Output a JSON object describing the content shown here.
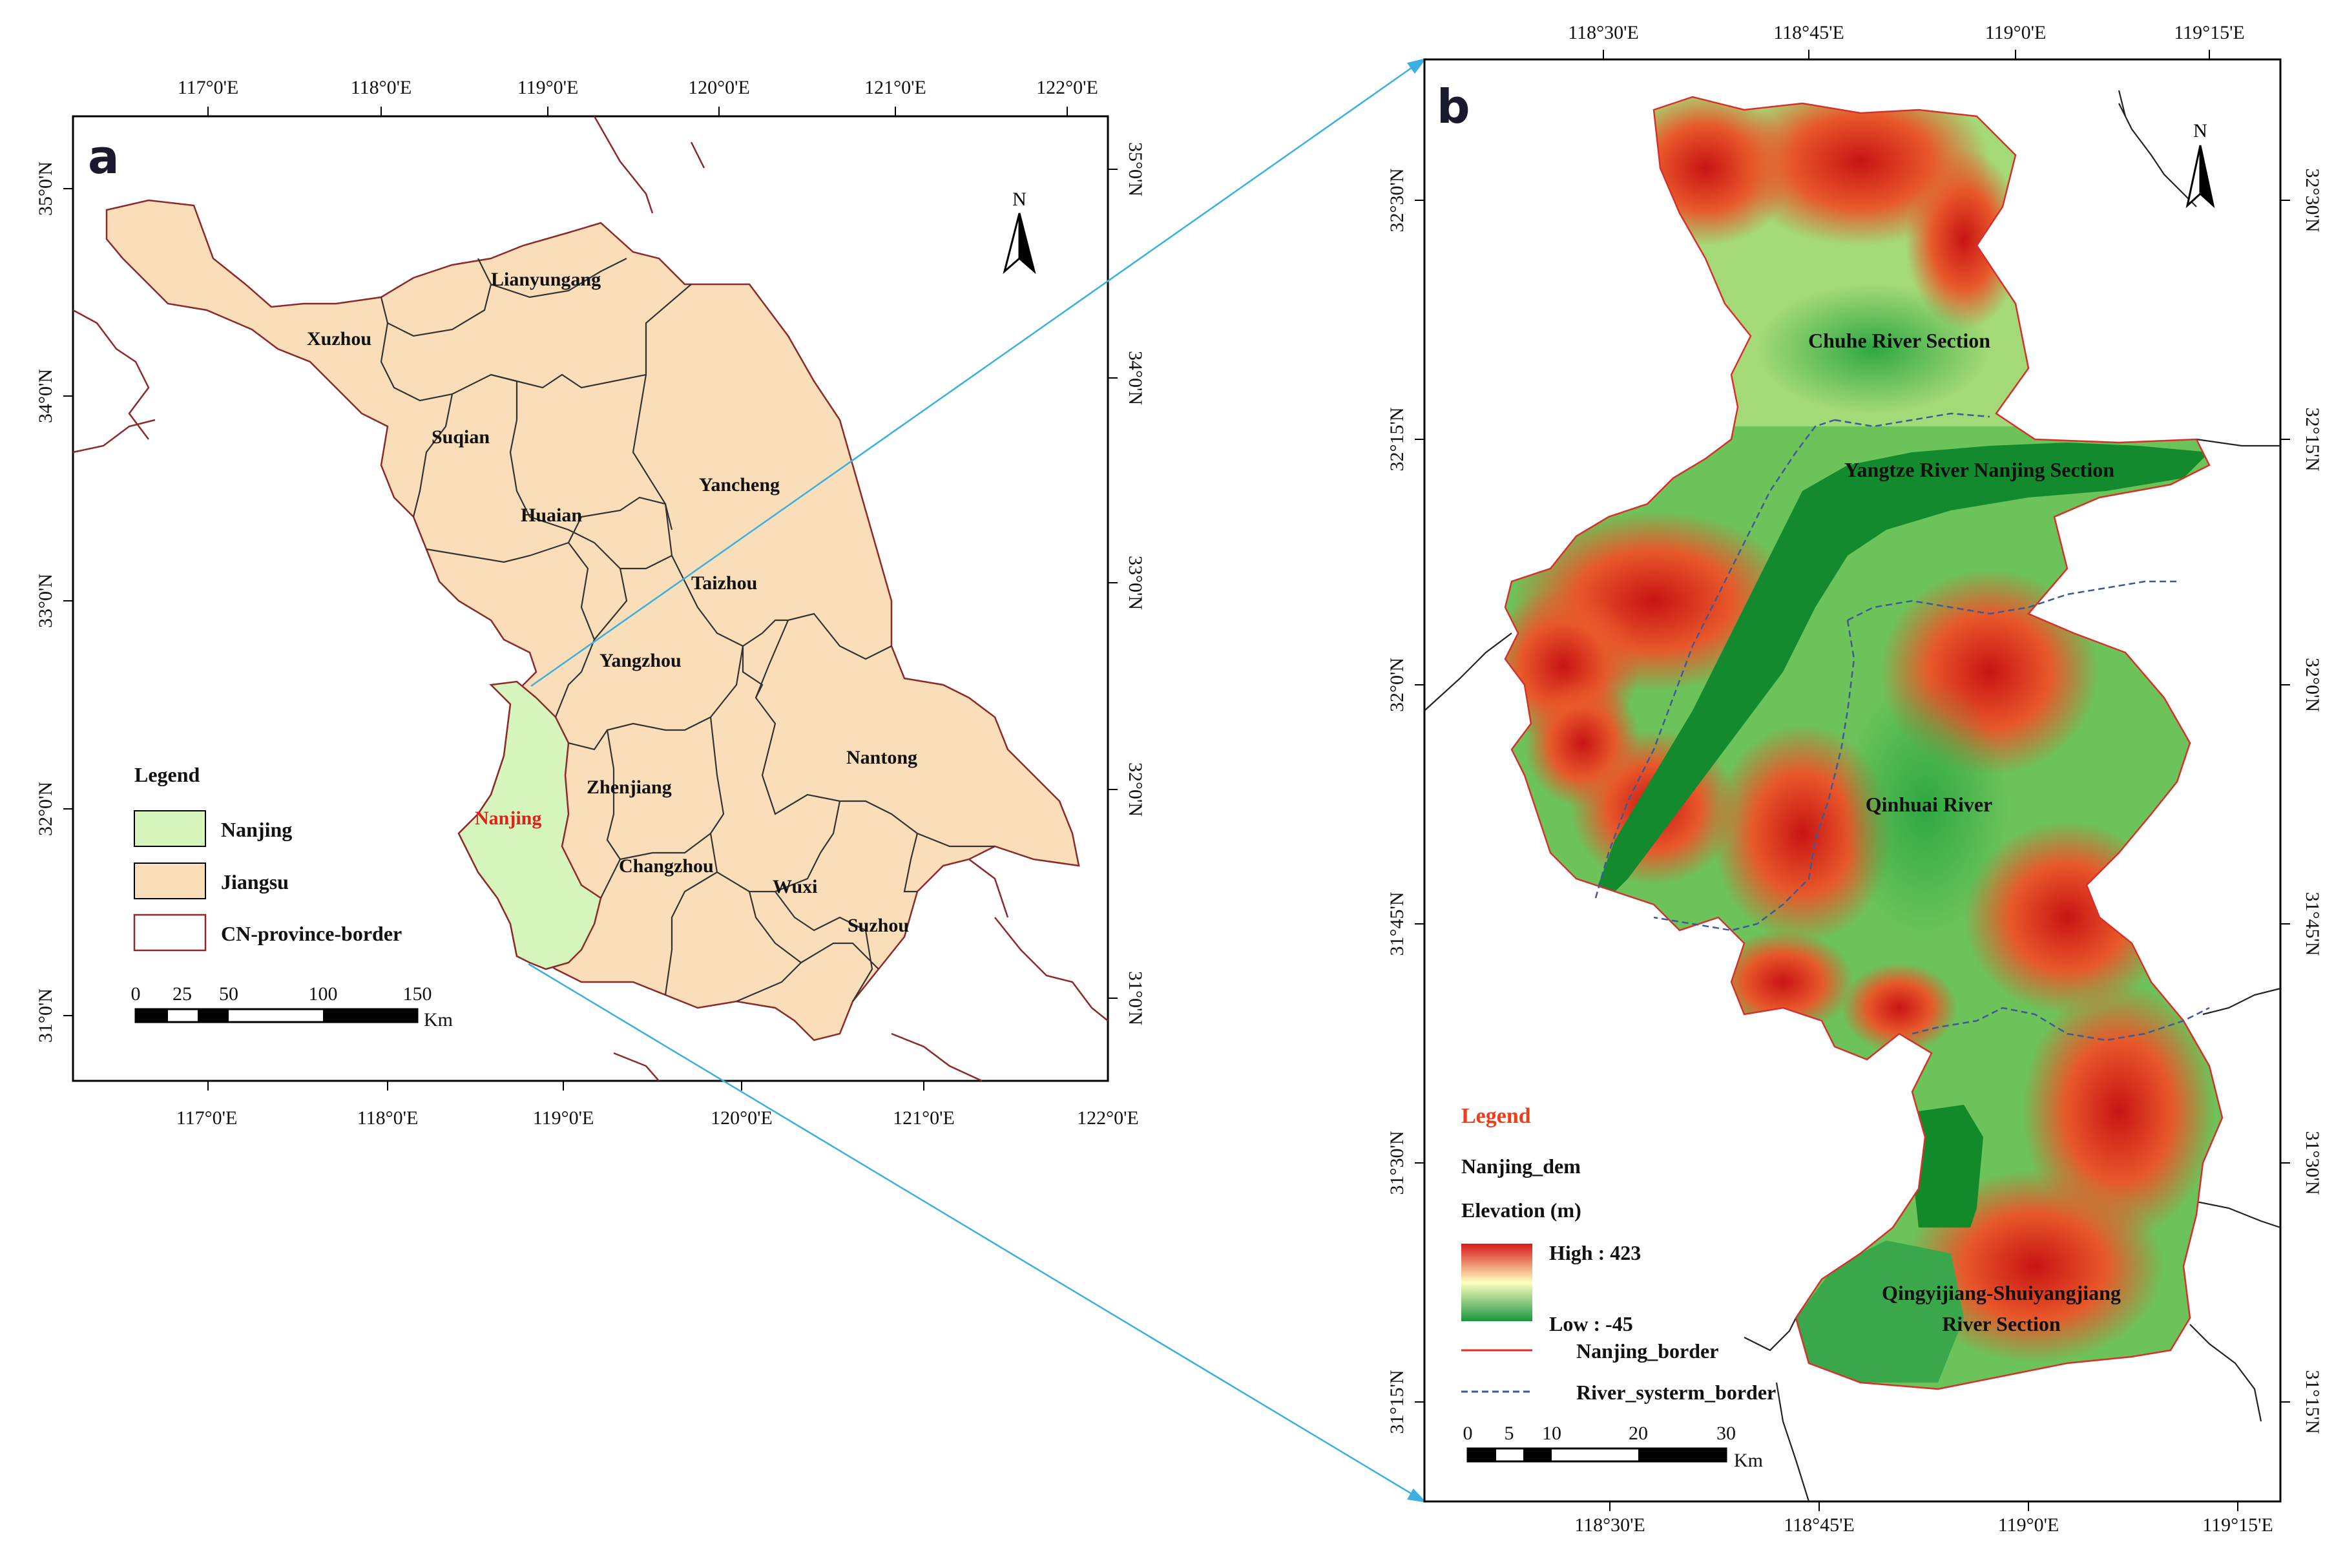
{
  "panel_a": {
    "label": "a",
    "top_ticks": [
      "117°0'E",
      "118°0'E",
      "119°0'E",
      "120°0'E",
      "121°0'E",
      "122°0'E"
    ],
    "bottom_ticks": [
      "117°0'E",
      "118°0'E",
      "119°0'E",
      "120°0'E",
      "121°0'E",
      "122°0'E"
    ],
    "left_ticks": [
      "35°0'N",
      "34°0'N",
      "33°0'N",
      "32°0'N",
      "31°0'N"
    ],
    "right_ticks": [
      "35°0'N",
      "34°0'N",
      "33°0'N",
      "32°0'N",
      "31°0'N"
    ],
    "north": "N",
    "cities": [
      "Lianyungang",
      "Xuzhou",
      "Suqian",
      "Huaian",
      "Yancheng",
      "Taizhou",
      "Yangzhou",
      "Nantong",
      "Zhenjiang",
      "Nanjing",
      "Changzhou",
      "Wuxi",
      "Suzhou"
    ],
    "highlight_city": "Nanjing",
    "legend": {
      "title": "Legend",
      "items": [
        "Nanjing",
        "Jiangsu",
        "CN-province-border"
      ]
    },
    "scale": {
      "labels": [
        "0",
        "25",
        "50",
        "100",
        "150"
      ],
      "unit": "Km"
    },
    "colors": {
      "jiangsu": "#f9deb9",
      "nanjing": "#d6f5bd",
      "province_border": "#8c2a2a",
      "city_label_highlight": "#e0201a"
    }
  },
  "panel_b": {
    "label": "b",
    "top_ticks": [
      "118°30'E",
      "118°45'E",
      "119°0'E",
      "119°15'E"
    ],
    "bottom_ticks": [
      "118°30'E",
      "118°45'E",
      "119°0'E",
      "119°15'E"
    ],
    "left_ticks": [
      "32°30'N",
      "32°15'N",
      "32°0'N",
      "31°45'N",
      "31°30'N",
      "31°15'N"
    ],
    "right_ticks": [
      "32°30'N",
      "32°15'N",
      "32°0'N",
      "31°45'N",
      "31°30'N",
      "31°15'N"
    ],
    "north": "N",
    "places": [
      "Chuhe River Section",
      "Yangtze River Nanjing Section",
      "Qinhuai River",
      "Qingyijiang-Shuiyangjiang",
      "River Section"
    ],
    "legend": {
      "title": "Legend",
      "layer": "Nanjing_dem",
      "field": "Elevation (m)",
      "high": "High : 423",
      "low": "Low : -45",
      "items": [
        "Nanjing_border",
        "River_systerm_border"
      ]
    },
    "scale": {
      "labels": [
        "0",
        "5",
        "10",
        "20",
        "30"
      ],
      "unit": "Km"
    },
    "colors": {
      "elev_high": "#d7191c",
      "elev_mid": "#ffffbf",
      "elev_low": "#1a9641",
      "river_dark": "#138a2e",
      "legend_title": "#e8401c",
      "nanjing_border": "#d7302a",
      "river_border": "#3a5a9a",
      "connector": "#3ab0e0"
    }
  }
}
